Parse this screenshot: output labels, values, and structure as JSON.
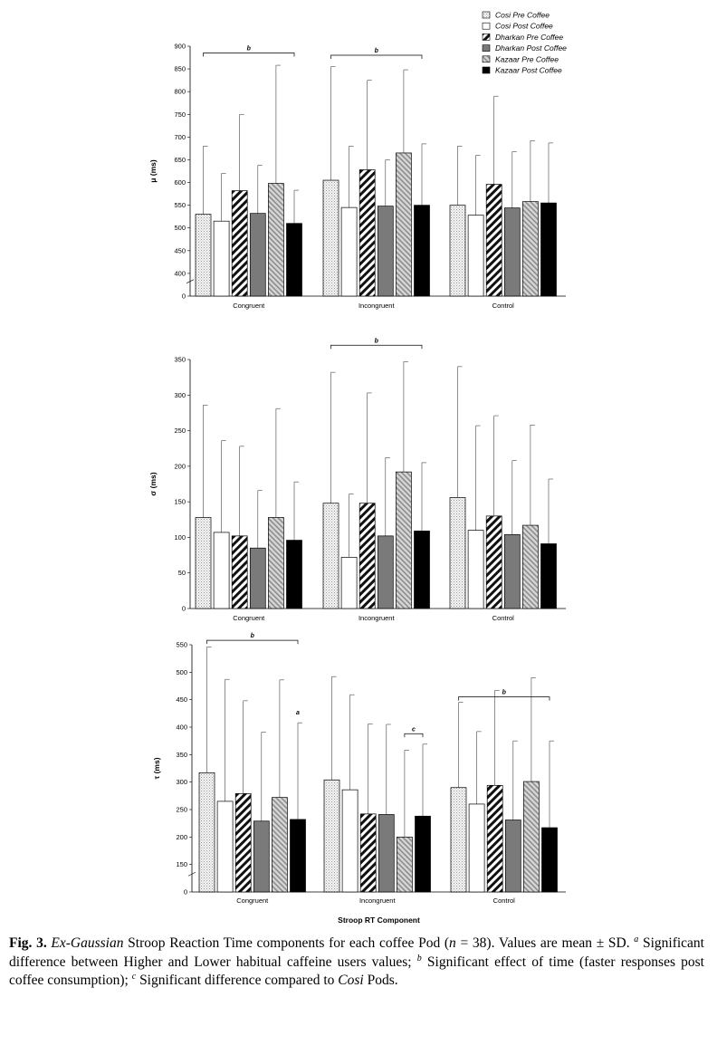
{
  "legend": [
    {
      "name": "Cosi Pre Coffee",
      "pattern": "dots"
    },
    {
      "name": "Cosi Post Coffee",
      "pattern": "white"
    },
    {
      "name": "Dharkan Pre Coffee",
      "pattern": "diag"
    },
    {
      "name": "Dharkan Post Coffee",
      "pattern": "gray"
    },
    {
      "name": "Kazaar Pre Coffee",
      "pattern": "diag-light"
    },
    {
      "name": "Kazaar Post Coffee",
      "pattern": "black"
    }
  ],
  "chart_data": [
    {
      "type": "bar",
      "ylabel": "μ (ms)",
      "xlabel": "",
      "categories": [
        "Congruent",
        "Incongruent",
        "Control"
      ],
      "ylim": [
        0,
        900
      ],
      "yticks": [
        0,
        400,
        450,
        500,
        550,
        600,
        650,
        700,
        750,
        800,
        850,
        900
      ],
      "axis_break": true,
      "series": [
        {
          "name": "Cosi Pre Coffee",
          "values": [
            530,
            605,
            550
          ],
          "sd_top": [
            680,
            855,
            680
          ]
        },
        {
          "name": "Cosi Post Coffee",
          "values": [
            515,
            545,
            528
          ],
          "sd_top": [
            620,
            680,
            660
          ]
        },
        {
          "name": "Dharkan Pre Coffee",
          "values": [
            582,
            628,
            596
          ],
          "sd_top": [
            750,
            825,
            790
          ]
        },
        {
          "name": "Dharkan Post Coffee",
          "values": [
            532,
            548,
            544
          ],
          "sd_top": [
            638,
            650,
            668
          ]
        },
        {
          "name": "Kazaar Pre Coffee",
          "values": [
            598,
            665,
            558
          ],
          "sd_top": [
            858,
            848,
            692
          ]
        },
        {
          "name": "Kazaar Post Coffee",
          "values": [
            510,
            550,
            555
          ],
          "sd_top": [
            583,
            685,
            687
          ]
        }
      ],
      "annotations": [
        {
          "text": "b",
          "from": [
            0,
            0
          ],
          "to": [
            0,
            5
          ],
          "y": 885
        },
        {
          "text": "b",
          "from": [
            1,
            0
          ],
          "to": [
            1,
            5
          ],
          "y": 880
        }
      ]
    },
    {
      "type": "bar",
      "ylabel": "σ (ms)",
      "xlabel": "",
      "categories": [
        "Congruent",
        "Incongruent",
        "Control"
      ],
      "ylim": [
        0,
        350
      ],
      "yticks": [
        0,
        50,
        100,
        150,
        200,
        250,
        300,
        350
      ],
      "axis_break": false,
      "series": [
        {
          "name": "Cosi Pre Coffee",
          "values": [
            128,
            148,
            156
          ],
          "sd_top": [
            286,
            332,
            340
          ]
        },
        {
          "name": "Cosi Post Coffee",
          "values": [
            107,
            72,
            110
          ],
          "sd_top": [
            236,
            161,
            257
          ]
        },
        {
          "name": "Dharkan Pre Coffee",
          "values": [
            102,
            148,
            130
          ],
          "sd_top": [
            228,
            303,
            271
          ]
        },
        {
          "name": "Dharkan Post Coffee",
          "values": [
            85,
            102,
            104
          ],
          "sd_top": [
            166,
            212,
            208
          ]
        },
        {
          "name": "Kazaar Pre Coffee",
          "values": [
            128,
            192,
            117
          ],
          "sd_top": [
            281,
            347,
            258
          ]
        },
        {
          "name": "Kazaar Post Coffee",
          "values": [
            96,
            109,
            91
          ],
          "sd_top": [
            178,
            205,
            182
          ]
        }
      ],
      "annotations": [
        {
          "text": "b",
          "from": [
            1,
            0
          ],
          "to": [
            1,
            5
          ],
          "y": 370
        }
      ]
    },
    {
      "type": "bar",
      "ylabel": "τ (ms)",
      "xlabel": "Stroop RT Component",
      "categories": [
        "Congruent",
        "Incongruent",
        "Control"
      ],
      "ylim": [
        0,
        550
      ],
      "yticks": [
        0,
        150,
        200,
        250,
        300,
        350,
        400,
        450,
        500,
        550
      ],
      "axis_break": true,
      "series": [
        {
          "name": "Cosi Pre Coffee",
          "values": [
            317,
            304,
            290
          ],
          "sd_top": [
            546,
            492,
            445
          ]
        },
        {
          "name": "Cosi Post Coffee",
          "values": [
            265,
            286,
            260
          ],
          "sd_top": [
            487,
            459,
            392
          ]
        },
        {
          "name": "Dharkan Pre Coffee",
          "values": [
            279,
            242,
            294
          ],
          "sd_top": [
            448,
            406,
            467
          ]
        },
        {
          "name": "Dharkan Post Coffee",
          "values": [
            229,
            241,
            231
          ],
          "sd_top": [
            391,
            405,
            375
          ]
        },
        {
          "name": "Kazaar Pre Coffee",
          "values": [
            272,
            200,
            301
          ],
          "sd_top": [
            486,
            358,
            490
          ]
        },
        {
          "name": "Kazaar Post Coffee",
          "values": [
            232,
            238,
            217
          ],
          "sd_top": [
            408,
            369,
            375
          ]
        }
      ],
      "annotations": [
        {
          "text": "b",
          "from": [
            0,
            0
          ],
          "to": [
            0,
            5
          ],
          "y": 558
        },
        {
          "text": "a",
          "from": [
            0,
            5
          ],
          "to": [
            0,
            5
          ],
          "y": 418
        },
        {
          "text": "c",
          "from": [
            1,
            4
          ],
          "to": [
            1,
            5
          ],
          "y": 388
        },
        {
          "text": "b",
          "from": [
            2,
            0
          ],
          "to": [
            2,
            5
          ],
          "y": 455
        }
      ]
    }
  ],
  "caption": {
    "label": "Fig. 3.",
    "italic_1": "Ex-Gaussian",
    "text_1": " Stroop Reaction Time components for each coffee Pod (",
    "italic_n": "n",
    "text_2": " = 38). Values are mean ± SD. ",
    "sup_a": "a",
    "text_3": " Significant difference between Higher and Lower habitual caffeine users values; ",
    "sup_b": "b",
    "text_4": " Significant effect of time (faster responses post coffee consumption); ",
    "sup_c": "c",
    "text_5": " Significant difference compared to ",
    "italic_cosi": "Cosi",
    "text_6": " Pods."
  }
}
